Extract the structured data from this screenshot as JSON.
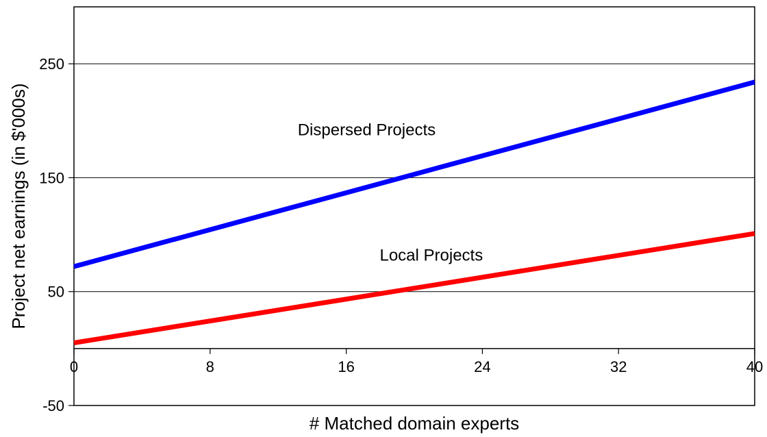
{
  "chart_data": {
    "type": "line",
    "title": "",
    "xlabel": "# Matched domain experts",
    "ylabel": "Project net earnings (in $'000s)",
    "xlim": [
      0,
      40
    ],
    "ylim": [
      -50,
      300
    ],
    "x_ticks": [
      0,
      8,
      16,
      24,
      32,
      40
    ],
    "y_ticks": [
      -50,
      50,
      150,
      250
    ],
    "y_gridlines": [
      50,
      150,
      250
    ],
    "x_axis_crosses_y_at": 0,
    "grid": true,
    "legend": "none",
    "series": [
      {
        "name": "Dispersed Projects",
        "color": "#0000ff",
        "x": [
          0,
          40
        ],
        "y": [
          72,
          234
        ]
      },
      {
        "name": "Local Projects",
        "color": "#ff0000",
        "x": [
          0,
          40
        ],
        "y": [
          5,
          101
        ]
      }
    ]
  }
}
